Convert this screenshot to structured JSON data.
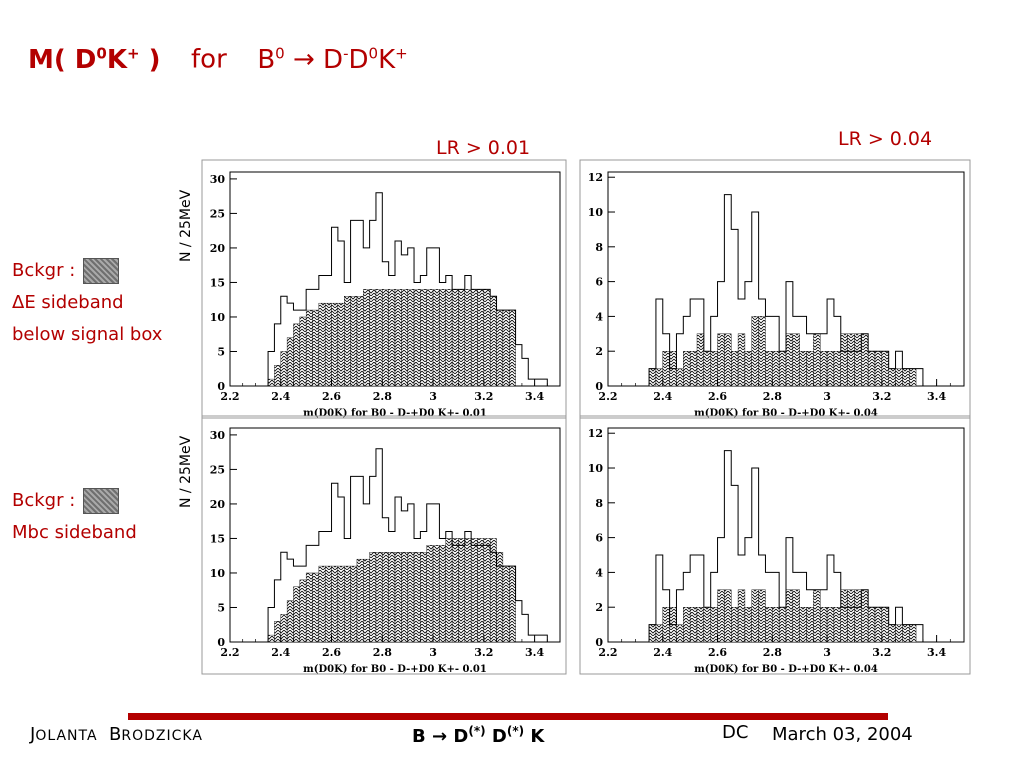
{
  "title": {
    "mass_prefix": "M( D",
    "mass_sup1": "0",
    "mass_k": "K",
    "mass_sup2": "+",
    "mass_close": " )",
    "for_text": "for",
    "b_text": "B",
    "b_sup": "0",
    "arrow": "→",
    "d_text": "D",
    "d_sup": "-",
    "d2_text": "D",
    "d2_sup": "0",
    "k_text": "K",
    "k_sup": "+"
  },
  "lr_labels": {
    "left": "LR > 0.01",
    "right": "LR > 0.04"
  },
  "y_axis_label": "N / 25MeV",
  "side_labels": {
    "top": {
      "line1": "Bckgr :",
      "line2_symbol": "Δ",
      "line2_text": "E sideband",
      "line3": "below signal box"
    },
    "bottom": {
      "line1": "Bckgr :",
      "line2": "Mbc sideband"
    }
  },
  "footer": {
    "author_first_initial": "J",
    "author_first_rest": "OLANTA",
    "author_last_initial": "B",
    "author_last_rest": "RODZICKA",
    "decay_b": "B",
    "decay_arrow": "→",
    "decay_d1": "D",
    "decay_star1": "(*)",
    "decay_d2": "D",
    "decay_star2": "(*)",
    "decay_k": "K",
    "dc": "DC",
    "date": "March 03,  2004"
  },
  "chart_data": [
    {
      "type": "bar",
      "panel": "top-left",
      "xlabel": "m(D0K) for B0 - D-+D0 K+- 0.01",
      "xlim": [
        2.2,
        3.5
      ],
      "ylim": [
        0,
        31
      ],
      "xticks": [
        "2.2",
        "2.4",
        "2.6",
        "2.8",
        "3",
        "3.2",
        "3.4"
      ],
      "yticks": [
        "0",
        "5",
        "10",
        "15",
        "20",
        "25",
        "30"
      ],
      "bin_start": 2.35,
      "bin_width": 0.025,
      "series": [
        {
          "values": [
            5,
            9,
            13,
            12,
            11,
            11,
            14,
            14,
            16,
            16,
            23,
            21,
            15,
            24,
            24,
            20,
            24,
            28,
            18,
            16,
            21,
            19,
            20,
            15,
            16,
            20,
            20,
            15,
            16,
            14,
            14,
            16,
            14,
            14,
            14,
            13,
            11,
            11,
            11,
            6,
            4,
            1,
            1,
            1
          ]
        },
        {
          "values": [
            1,
            3,
            5,
            7,
            9,
            10,
            11,
            11,
            12,
            12,
            12,
            12,
            13,
            13,
            13,
            14,
            14,
            14,
            14,
            14,
            14,
            14,
            14,
            14,
            14,
            14,
            14,
            14,
            14,
            14,
            14,
            14,
            14,
            14,
            14,
            13,
            11,
            11,
            11,
            0,
            0,
            0,
            0,
            0
          ]
        }
      ]
    },
    {
      "type": "bar",
      "panel": "top-right",
      "xlabel": "m(D0K) for B0 - D-+D0 K+- 0.04",
      "xlim": [
        2.2,
        3.5
      ],
      "ylim": [
        0,
        12.3
      ],
      "xticks": [
        "2.2",
        "2.4",
        "2.6",
        "2.8",
        "3",
        "3.2",
        "3.4"
      ],
      "yticks": [
        "0",
        "2",
        "4",
        "6",
        "8",
        "10",
        "12"
      ],
      "bin_start": 2.35,
      "bin_width": 0.025,
      "series": [
        {
          "values": [
            1,
            5,
            3,
            1,
            3,
            4,
            5,
            5,
            2,
            4,
            6,
            11,
            9,
            5,
            6,
            10,
            5,
            4,
            4,
            2,
            6,
            4,
            4,
            3,
            3,
            3,
            5,
            4,
            2,
            2,
            2,
            3,
            2,
            2,
            2,
            1,
            2,
            1,
            1,
            1,
            0,
            0,
            0,
            0
          ]
        },
        {
          "values": [
            1,
            1,
            2,
            2,
            1,
            2,
            2,
            3,
            2,
            2,
            3,
            3,
            2,
            3,
            2,
            4,
            4,
            2,
            2,
            2,
            3,
            3,
            2,
            2,
            3,
            2,
            2,
            2,
            3,
            3,
            3,
            3,
            2,
            2,
            2,
            1,
            1,
            1,
            1,
            0,
            0,
            0,
            0,
            0
          ]
        }
      ]
    },
    {
      "type": "bar",
      "panel": "bottom-left",
      "xlabel": "m(D0K) for B0 - D-+D0 K+- 0.01",
      "xlim": [
        2.2,
        3.5
      ],
      "ylim": [
        0,
        31
      ],
      "xticks": [
        "2.2",
        "2.4",
        "2.6",
        "2.8",
        "3",
        "3.2",
        "3.4"
      ],
      "yticks": [
        "0",
        "5",
        "10",
        "15",
        "20",
        "25",
        "30"
      ],
      "bin_start": 2.35,
      "bin_width": 0.025,
      "series": [
        {
          "values": [
            5,
            9,
            13,
            12,
            11,
            11,
            14,
            14,
            16,
            16,
            23,
            21,
            15,
            24,
            24,
            20,
            24,
            28,
            18,
            16,
            21,
            19,
            20,
            15,
            16,
            20,
            20,
            15,
            16,
            14,
            14,
            16,
            14,
            14,
            14,
            13,
            11,
            11,
            11,
            6,
            4,
            1,
            1,
            1
          ]
        },
        {
          "values": [
            1,
            3,
            4,
            6,
            8,
            9,
            10,
            10,
            11,
            11,
            11,
            11,
            11,
            11,
            12,
            12,
            13,
            13,
            13,
            13,
            13,
            13,
            13,
            13,
            13,
            14,
            14,
            14,
            15,
            15,
            15,
            15,
            15,
            15,
            15,
            15,
            13,
            11,
            11,
            0,
            0,
            0,
            0,
            0
          ]
        }
      ]
    },
    {
      "type": "bar",
      "panel": "bottom-right",
      "xlabel": "m(D0K) for B0 - D-+D0 K+- 0.04",
      "xlim": [
        2.2,
        3.5
      ],
      "ylim": [
        0,
        12.3
      ],
      "xticks": [
        "2.2",
        "2.4",
        "2.6",
        "2.8",
        "3",
        "3.2",
        "3.4"
      ],
      "yticks": [
        "0",
        "2",
        "4",
        "6",
        "8",
        "10",
        "12"
      ],
      "bin_start": 2.35,
      "bin_width": 0.025,
      "series": [
        {
          "values": [
            1,
            5,
            3,
            1,
            3,
            4,
            5,
            5,
            2,
            4,
            6,
            11,
            9,
            5,
            6,
            10,
            5,
            4,
            4,
            2,
            6,
            4,
            4,
            3,
            3,
            3,
            5,
            4,
            2,
            2,
            2,
            3,
            2,
            2,
            2,
            1,
            2,
            1,
            1,
            1,
            0,
            0,
            0,
            0
          ]
        },
        {
          "values": [
            1,
            1,
            2,
            2,
            1,
            2,
            2,
            2,
            2,
            2,
            3,
            3,
            2,
            3,
            2,
            3,
            3,
            2,
            2,
            2,
            3,
            3,
            2,
            2,
            3,
            2,
            2,
            2,
            3,
            3,
            3,
            3,
            2,
            2,
            2,
            1,
            1,
            1,
            1,
            0,
            0,
            0,
            0,
            0
          ]
        }
      ]
    }
  ]
}
